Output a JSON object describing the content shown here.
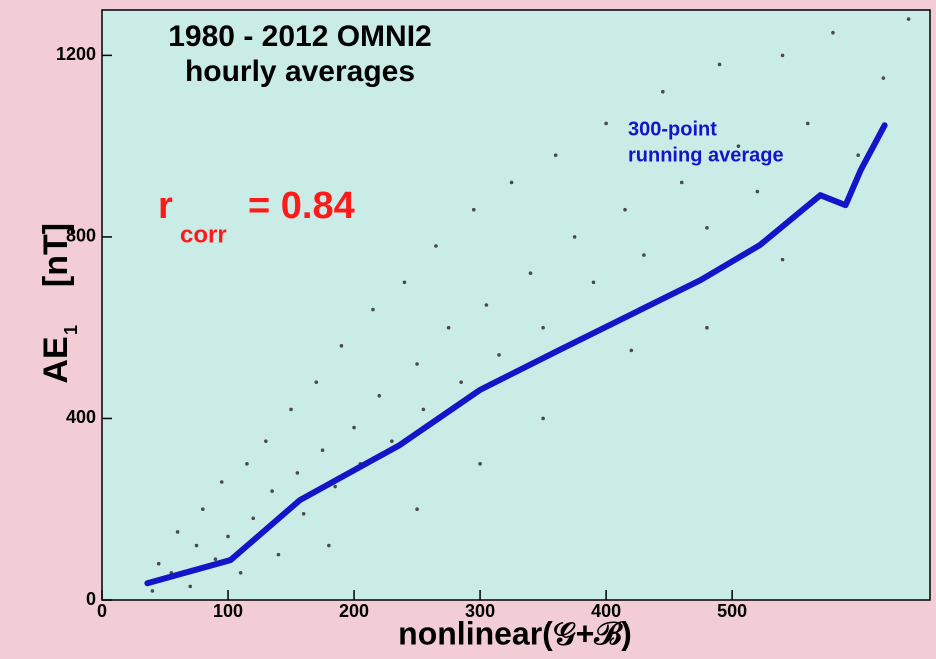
{
  "chart_data": {
    "type": "scatter",
    "title": [
      "1980 - 2012 OMNI2",
      "hourly averages"
    ],
    "xlabel": "nonlinear(𝒢+ℬ)",
    "ylabel": {
      "main": "AE",
      "sub": "1",
      "unit": "[nT]"
    },
    "annotation_r": {
      "main": "r",
      "sub": "corr",
      "rest": "= 0.84",
      "color": "#ff1a1a"
    },
    "annotation_line": [
      "300-point",
      "running average"
    ],
    "xlim": [
      0,
      657
    ],
    "ylim": [
      0,
      1300
    ],
    "xticks": [
      0,
      100,
      200,
      300,
      400,
      500
    ],
    "yticks": [
      0,
      400,
      800,
      1200
    ],
    "scatter": {
      "color": "#4a4a4a",
      "x": [
        40,
        45,
        55,
        60,
        70,
        75,
        80,
        90,
        95,
        100,
        110,
        115,
        120,
        130,
        135,
        140,
        150,
        155,
        160,
        170,
        175,
        185,
        190,
        200,
        205,
        215,
        220,
        230,
        240,
        250,
        255,
        265,
        275,
        285,
        295,
        305,
        315,
        325,
        340,
        350,
        360,
        375,
        390,
        400,
        415,
        430,
        445,
        460,
        480,
        490,
        505,
        520,
        540,
        560,
        580,
        600,
        620,
        640,
        300,
        250,
        180,
        350,
        420,
        480,
        540
      ],
      "values": [
        20,
        80,
        60,
        150,
        30,
        120,
        200,
        90,
        260,
        140,
        60,
        300,
        180,
        350,
        240,
        100,
        420,
        280,
        190,
        480,
        330,
        250,
        560,
        380,
        300,
        640,
        450,
        350,
        700,
        520,
        420,
        780,
        600,
        480,
        860,
        650,
        540,
        920,
        720,
        600,
        980,
        800,
        700,
        1050,
        860,
        760,
        1120,
        920,
        820,
        1180,
        1000,
        900,
        1200,
        1050,
        1250,
        980,
        1150,
        1280,
        300,
        200,
        120,
        400,
        550,
        600,
        750
      ]
    },
    "running_average": {
      "color": "#1414c8",
      "x": [
        36,
        102,
        157,
        236,
        300,
        363,
        427,
        475,
        522,
        570,
        590,
        602,
        621
      ],
      "values": [
        37,
        88,
        220,
        341,
        463,
        551,
        639,
        705,
        782,
        892,
        870,
        947,
        1046
      ]
    }
  }
}
